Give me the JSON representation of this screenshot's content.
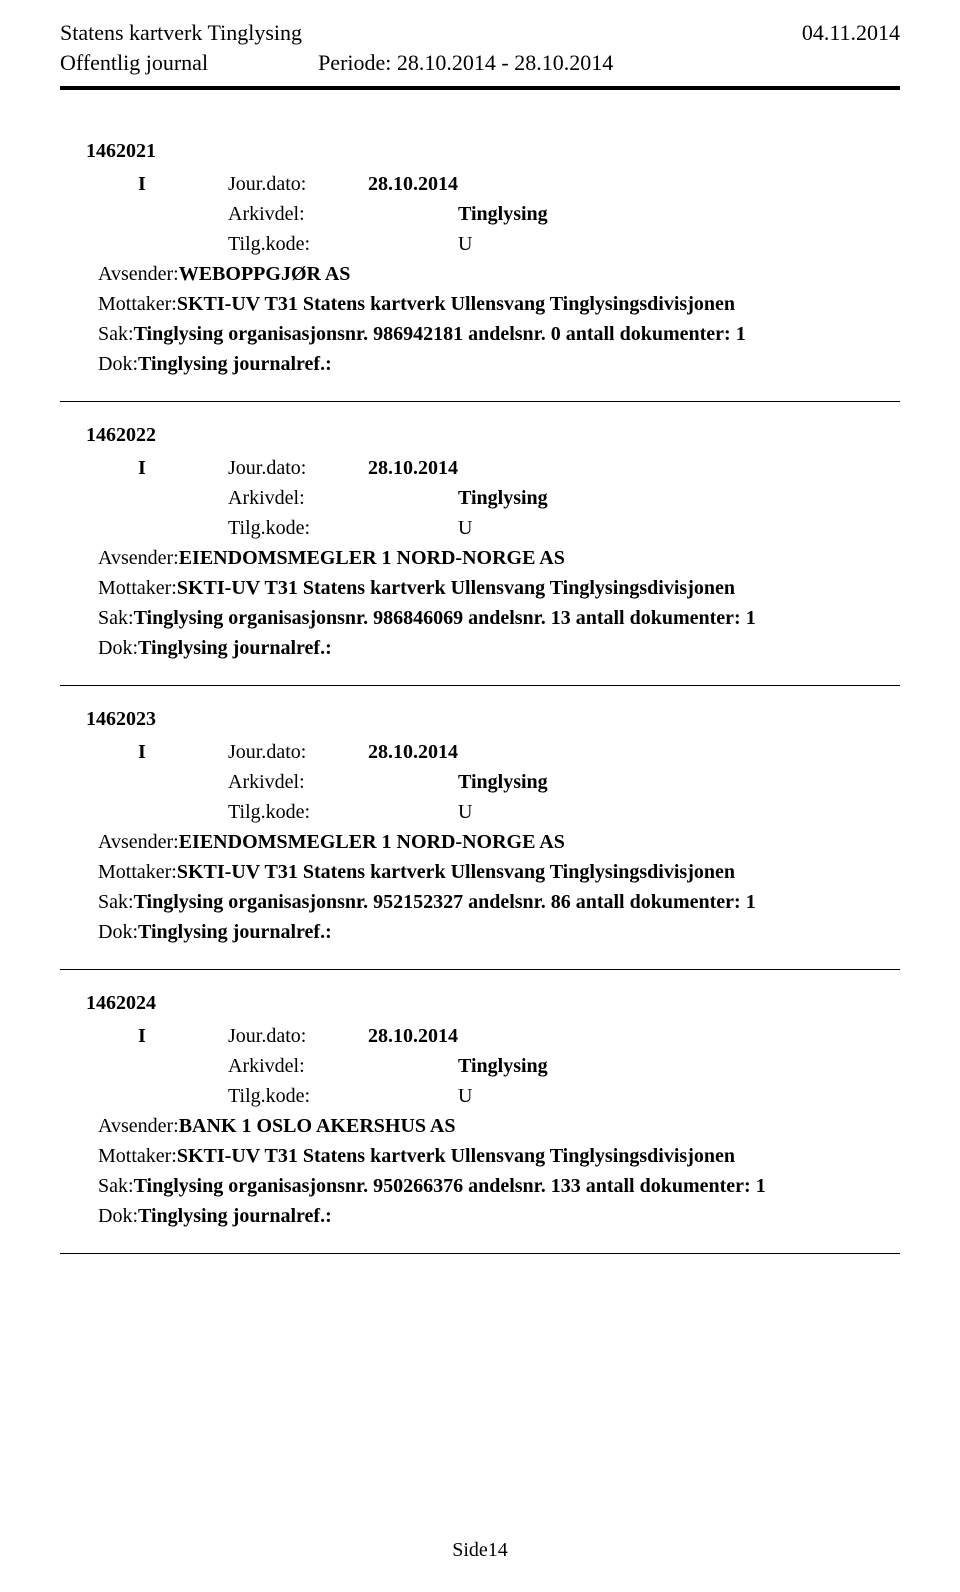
{
  "header": {
    "org": "Statens kartverk Tinglysing",
    "date": "04.11.2014",
    "subtitle": "Offentlig journal",
    "period_label": "Periode:",
    "period_value": "28.10.2014 - 28.10.2014"
  },
  "labels": {
    "I": "I",
    "jourdato": "Jour.dato:",
    "arkivdel": "Arkivdel:",
    "tilgkode": "Tilg.kode:",
    "avsender": "Avsender:",
    "mottaker": "Mottaker:",
    "sak": "Sak:",
    "dok": "Dok:"
  },
  "entries": [
    {
      "id": "1462021",
      "jourdato": "28.10.2014",
      "arkivdel": "Tinglysing",
      "tilgkode": "U",
      "avsender": "WEBOPPGJØR AS",
      "mottaker": "SKTI-UV T31 Statens kartverk Ullensvang Tinglysingsdivisjonen",
      "sak": "Tinglysing organisasjonsnr. 986942181 andelsnr. 0 antall dokumenter: 1",
      "dok": "Tinglysing journalref.:"
    },
    {
      "id": "1462022",
      "jourdato": "28.10.2014",
      "arkivdel": "Tinglysing",
      "tilgkode": "U",
      "avsender": "EIENDOMSMEGLER 1 NORD-NORGE AS",
      "mottaker": "SKTI-UV T31 Statens kartverk Ullensvang Tinglysingsdivisjonen",
      "sak": "Tinglysing organisasjonsnr. 986846069 andelsnr. 13 antall dokumenter: 1",
      "dok": "Tinglysing journalref.:"
    },
    {
      "id": "1462023",
      "jourdato": "28.10.2014",
      "arkivdel": "Tinglysing",
      "tilgkode": "U",
      "avsender": "EIENDOMSMEGLER 1 NORD-NORGE AS",
      "mottaker": "SKTI-UV T31 Statens kartverk Ullensvang Tinglysingsdivisjonen",
      "sak": "Tinglysing organisasjonsnr. 952152327 andelsnr. 86 antall dokumenter: 1",
      "dok": "Tinglysing journalref.:"
    },
    {
      "id": "1462024",
      "jourdato": "28.10.2014",
      "arkivdel": "Tinglysing",
      "tilgkode": "U",
      "avsender": "BANK 1 OSLO AKERSHUS AS",
      "mottaker": "SKTI-UV T31 Statens kartverk Ullensvang Tinglysingsdivisjonen",
      "sak": "Tinglysing organisasjonsnr. 950266376 andelsnr. 133 antall dokumenter: 1",
      "dok": "Tinglysing journalref.:"
    }
  ],
  "footer": {
    "page": "Side14"
  }
}
